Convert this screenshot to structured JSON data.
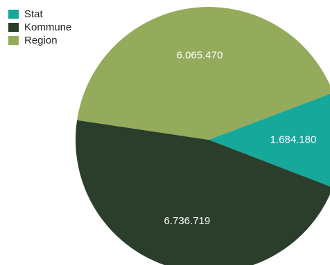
{
  "chart_data": {
    "type": "pie",
    "slices": [
      {
        "label": "Stat",
        "value": 1684180,
        "display": "1.684.180",
        "color": "#15A89B"
      },
      {
        "label": "Kommune",
        "value": 6736719,
        "display": "6.736.719",
        "color": "#2A3E2B"
      },
      {
        "label": "Region",
        "value": 6065470,
        "display": "6.065.470",
        "color": "#95AB5C"
      }
    ],
    "legend_position": "top-left",
    "title": ""
  }
}
